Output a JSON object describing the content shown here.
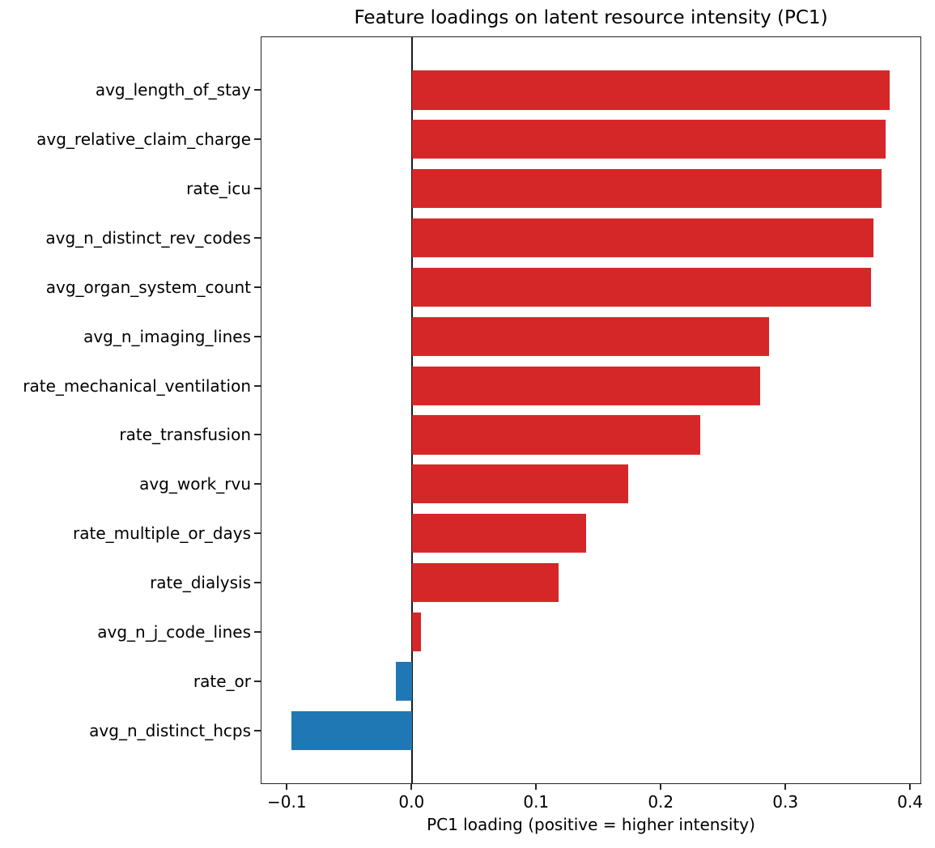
{
  "chart_data": {
    "type": "bar",
    "orientation": "horizontal",
    "title": "Feature loadings on latent resource intensity (PC1)",
    "xlabel": "PC1 loading (positive = higher intensity)",
    "ylabel": "",
    "categories": [
      "avg_length_of_stay",
      "avg_relative_claim_charge",
      "rate_icu",
      "avg_n_distinct_rev_codes",
      "avg_organ_system_count",
      "avg_n_imaging_lines",
      "rate_mechanical_ventilation",
      "rate_transfusion",
      "avg_work_rvu",
      "rate_multiple_or_days",
      "rate_dialysis",
      "avg_n_j_code_lines",
      "rate_or",
      "avg_n_distinct_hcps"
    ],
    "values": [
      0.384,
      0.381,
      0.378,
      0.371,
      0.369,
      0.287,
      0.28,
      0.232,
      0.174,
      0.14,
      0.118,
      0.007,
      -0.013,
      -0.097
    ],
    "xlim": [
      -0.121,
      0.409
    ],
    "xticks": {
      "values": [
        -0.1,
        0.0,
        0.1,
        0.2,
        0.3,
        0.4
      ],
      "labels": [
        "−0.1",
        "0.0",
        "0.1",
        "0.2",
        "0.3",
        "0.4"
      ]
    },
    "zero_line": true,
    "grid": false,
    "legend": null,
    "colors": {
      "positive": "#d62728",
      "negative": "#1f77b4",
      "axis": "#262626",
      "zero_line": "#1a1a1a",
      "background": "#ffffff",
      "text": "#000000"
    }
  }
}
